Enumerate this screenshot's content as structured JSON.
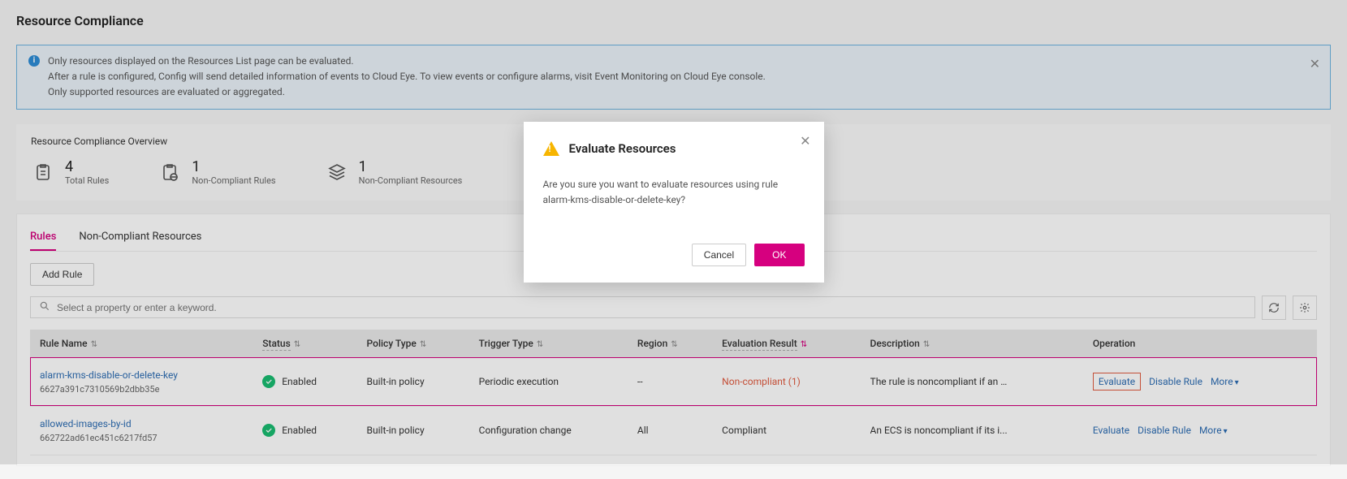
{
  "page": {
    "title": "Resource Compliance"
  },
  "banner": {
    "line1": "Only resources displayed on the Resources List page can be evaluated.",
    "line2": "After a rule is configured, Config will send detailed information of events to Cloud Eye. To view events or configure alarms, visit Event Monitoring on Cloud Eye console.",
    "line3": "Only supported resources are evaluated or aggregated."
  },
  "overview": {
    "title": "Resource Compliance Overview",
    "total_rules": {
      "value": "4",
      "label": "Total Rules"
    },
    "noncompliant_rules": {
      "value": "1",
      "label": "Non-Compliant Rules"
    },
    "noncompliant_resources": {
      "value": "1",
      "label": "Non-Compliant Resources"
    }
  },
  "tabs": {
    "rules": "Rules",
    "noncompliant": "Non-Compliant Resources"
  },
  "toolbar": {
    "add_rule": "Add Rule",
    "search_placeholder": "Select a property or enter a keyword."
  },
  "columns": {
    "rule_name": "Rule Name",
    "status": "Status",
    "policy_type": "Policy Type",
    "trigger_type": "Trigger Type",
    "region": "Region",
    "evaluation_result": "Evaluation Result",
    "description": "Description",
    "operation": "Operation"
  },
  "rows": [
    {
      "name": "alarm-kms-disable-or-delete-key",
      "id": "6627a391c7310569b2dbb35e",
      "status": "Enabled",
      "policy_type": "Built-in policy",
      "trigger_type": "Periodic execution",
      "region": "--",
      "eval_result": "Non-compliant (1)",
      "eval_noncompliant": true,
      "description": "The rule is noncompliant if an ...",
      "highlighted": true,
      "evaluate_boxed": true
    },
    {
      "name": "allowed-images-by-id",
      "id": "662722ad61ec451c6217fd57",
      "status": "Enabled",
      "policy_type": "Built-in policy",
      "trigger_type": "Configuration change",
      "region": "All",
      "eval_result": "Compliant",
      "eval_noncompliant": false,
      "description": "An ECS is noncompliant if its i...",
      "highlighted": false,
      "evaluate_boxed": false
    }
  ],
  "ops": {
    "evaluate": "Evaluate",
    "disable": "Disable Rule",
    "more": "More"
  },
  "modal": {
    "title": "Evaluate Resources",
    "body": "Are you sure you want to evaluate resources using rule alarm-kms-disable-or-delete-key?",
    "cancel": "Cancel",
    "ok": "OK"
  },
  "colors": {
    "accent": "#d6007f",
    "link": "#2d6db3",
    "noncompliant": "#e05a3f",
    "enabled": "#1abc71",
    "banner_border": "#6db3e0"
  }
}
